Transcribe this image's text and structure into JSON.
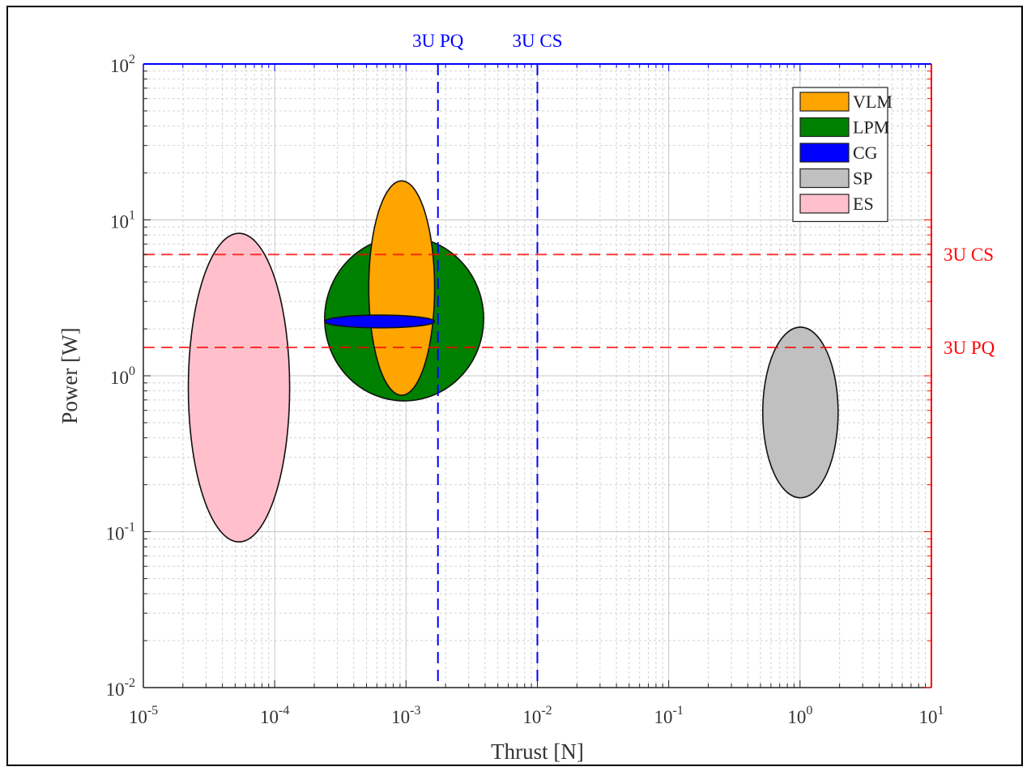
{
  "chart_data": {
    "type": "area",
    "xlabel": "Thrust [N]",
    "ylabel": "Power [W]",
    "x_scale": "log",
    "y_scale": "log",
    "xlim": [
      1e-05,
      10
    ],
    "ylim": [
      0.01,
      100
    ],
    "grid": true,
    "legend_position": "top-right",
    "x_ticks": [
      {
        "value": 1e-05,
        "base": "10",
        "exp": "-5"
      },
      {
        "value": 0.0001,
        "base": "10",
        "exp": "-4"
      },
      {
        "value": 0.001,
        "base": "10",
        "exp": "-3"
      },
      {
        "value": 0.01,
        "base": "10",
        "exp": "-2"
      },
      {
        "value": 0.1,
        "base": "10",
        "exp": "-1"
      },
      {
        "value": 1,
        "base": "10",
        "exp": "0"
      },
      {
        "value": 10,
        "base": "10",
        "exp": "1"
      }
    ],
    "y_ticks": [
      {
        "value": 0.01,
        "base": "10",
        "exp": "-2"
      },
      {
        "value": 0.1,
        "base": "10",
        "exp": "-1"
      },
      {
        "value": 1,
        "base": "10",
        "exp": "0"
      },
      {
        "value": 10,
        "base": "10",
        "exp": "1"
      },
      {
        "value": 100,
        "base": "10",
        "exp": "2"
      }
    ],
    "series": [
      {
        "name": "ES",
        "color": "#ffc0cb",
        "x_range": [
          2.2e-05,
          0.00013
        ],
        "y_range": [
          0.086,
          8.2
        ]
      },
      {
        "name": "LPM",
        "color": "#008000",
        "x_range": [
          0.00024,
          0.0039
        ],
        "y_range": [
          0.69,
          7.8
        ]
      },
      {
        "name": "VLM",
        "color": "#ffa500",
        "x_range": [
          0.00052,
          0.00165
        ],
        "y_range": [
          0.75,
          17.8
        ]
      },
      {
        "name": "CG",
        "color": "#0000ff",
        "x_range": [
          0.00024,
          0.00165
        ],
        "y_range": [
          2.03,
          2.45
        ]
      },
      {
        "name": "SP",
        "color": "#c0c0c0",
        "x_range": [
          0.52,
          1.95
        ],
        "y_range": [
          0.165,
          2.05
        ]
      }
    ],
    "legend_order": [
      "VLM",
      "LPM",
      "CG",
      "SP",
      "ES"
    ],
    "reference_lines": [
      {
        "label": "3U PQ",
        "axis": "x",
        "value": 0.00175,
        "color": "#0000ff"
      },
      {
        "label": "3U CS",
        "axis": "x",
        "value": 0.01,
        "color": "#0000ff"
      },
      {
        "label": "3U CS",
        "axis": "y",
        "value": 6.0,
        "color": "#ff0000"
      },
      {
        "label": "3U PQ",
        "axis": "y",
        "value": 1.52,
        "color": "#ff0000"
      }
    ]
  }
}
